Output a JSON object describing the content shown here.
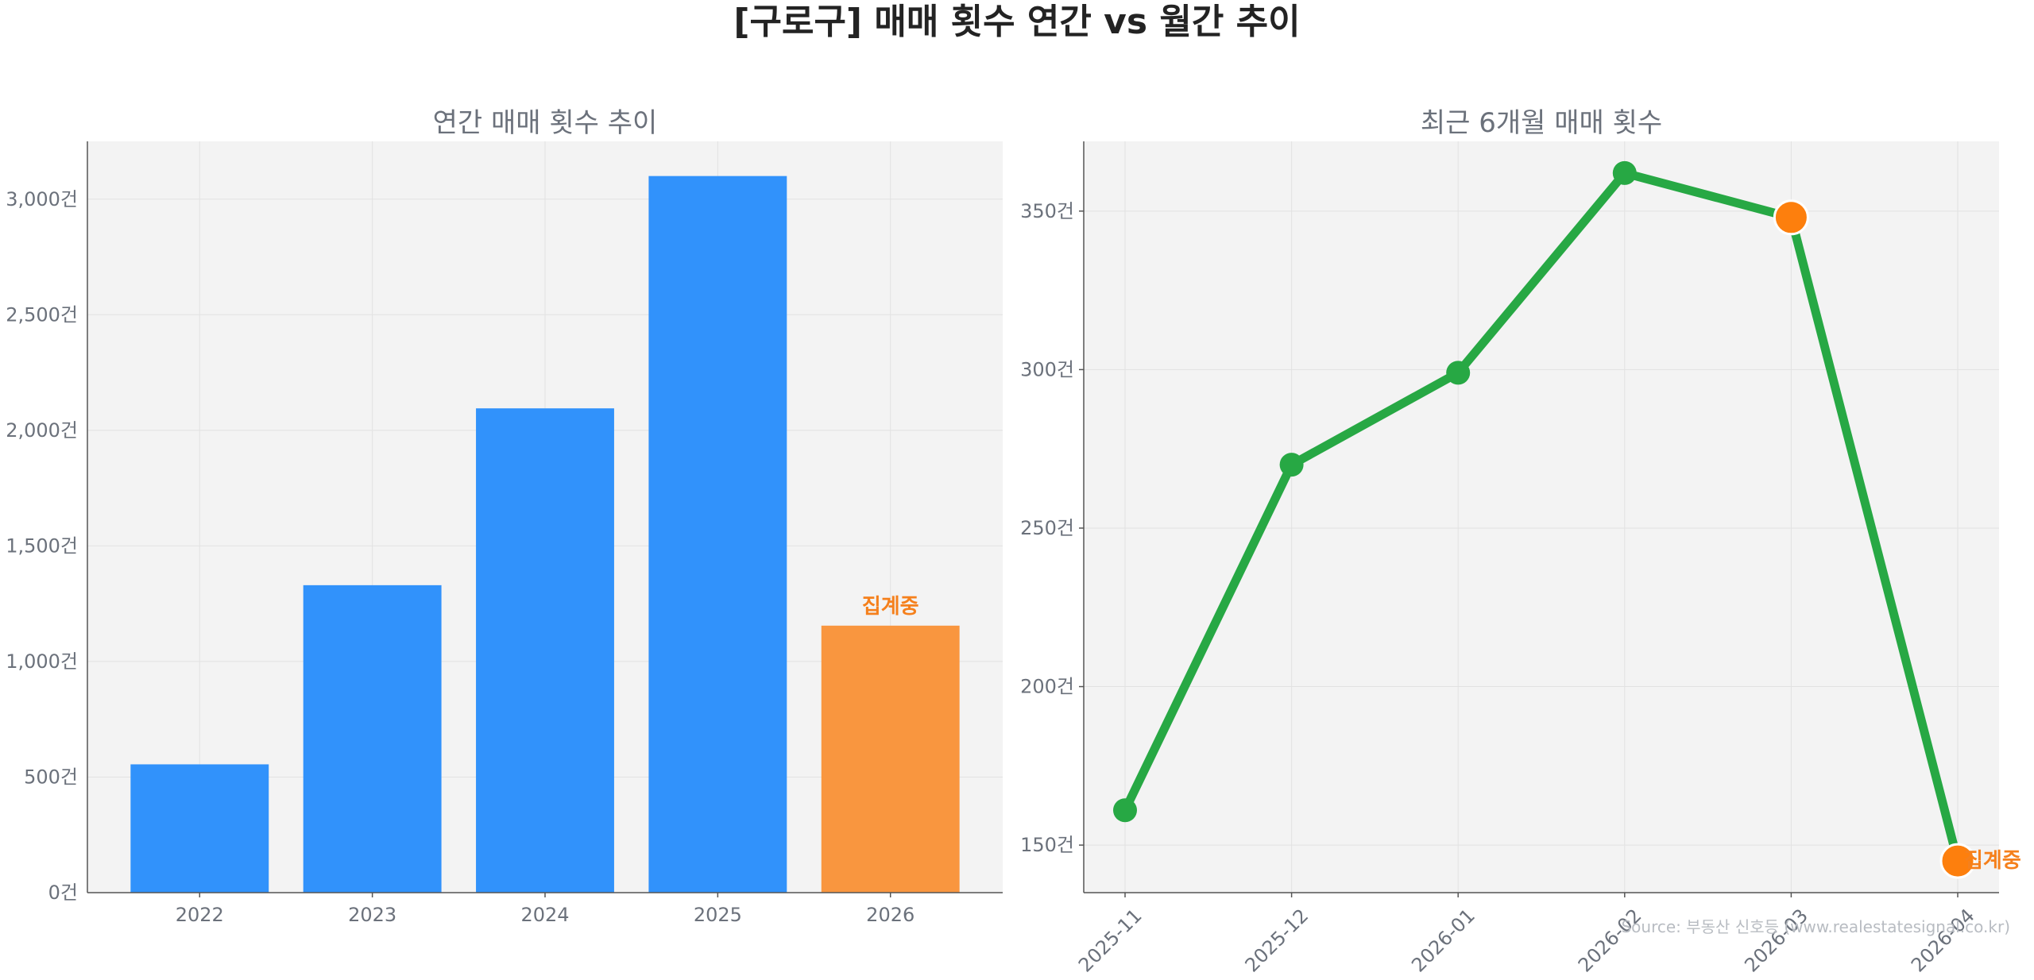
{
  "title": "[구로구] 매매 횟수 연간 vs 월간 추이",
  "source": "Source: 부동산 신호등 (www.realestatesignal.co.kr)",
  "colors": {
    "panel_bg": "#f3f3f3",
    "bar_blue": "#3192fb",
    "bar_orange": "#f9963f",
    "line_green": "#27a844",
    "marker_orange": "#fd7f0d",
    "annotation_orange": "#f5801c",
    "text_gray": "#6b717b",
    "title_dark": "#232323"
  },
  "chart_data": [
    {
      "type": "bar",
      "title": "연간 매매 횟수 추이",
      "categories": [
        "2022",
        "2023",
        "2024",
        "2025",
        "2026"
      ],
      "values": [
        555,
        1330,
        2095,
        3100,
        1155
      ],
      "highlight": [
        false,
        false,
        false,
        false,
        true
      ],
      "annotation": {
        "category": "2026",
        "text": "집계중"
      },
      "ylim": [
        0,
        3250
      ],
      "yticks": [
        0,
        500,
        1000,
        1500,
        2000,
        2500,
        3000
      ],
      "ytick_labels": [
        "0건",
        "500건",
        "1,000건",
        "1,500건",
        "2,000건",
        "2,500건",
        "3,000건"
      ],
      "grid": true
    },
    {
      "type": "line",
      "title": "최근 6개월 매매 횟수",
      "x": [
        "2025-11",
        "2025-12",
        "2026-01",
        "2026-02",
        "2026-03",
        "2026-04"
      ],
      "values": [
        161,
        270,
        299,
        362,
        348,
        145
      ],
      "highlight": [
        false,
        false,
        false,
        false,
        true,
        true
      ],
      "annotation": {
        "category": "2026-04",
        "text": "집계중"
      },
      "ylim": [
        135,
        372
      ],
      "yticks": [
        150,
        200,
        250,
        300,
        350
      ],
      "ytick_labels": [
        "150건",
        "200건",
        "250건",
        "300건",
        "350건"
      ],
      "grid": true
    }
  ]
}
